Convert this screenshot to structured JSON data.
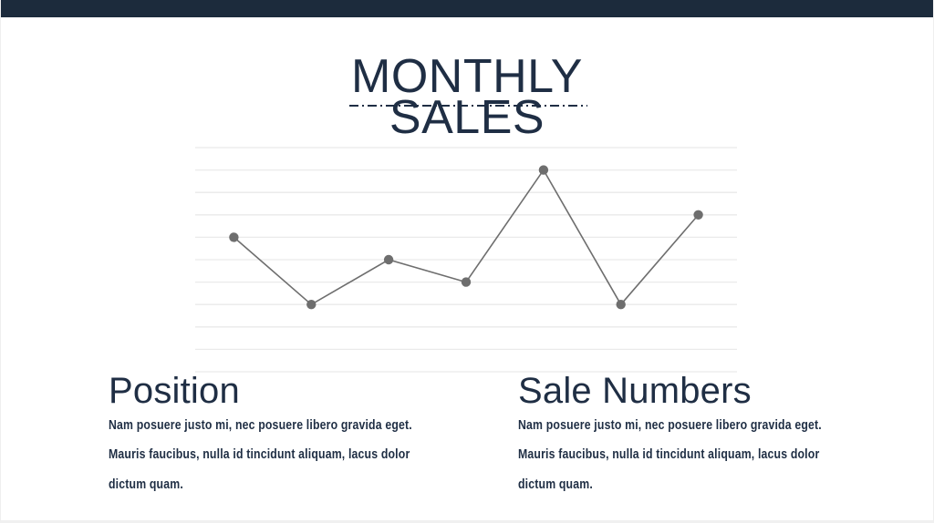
{
  "colors": {
    "ink": "#1f2e44",
    "top_bar": "#1c2b3c"
  },
  "slide": {
    "title_line1": "MONTHLY",
    "title_line2": "SALES"
  },
  "sections": [
    {
      "heading": "Position",
      "lines": [
        "Nam posuere justo mi, nec posuere libero gravida eget.",
        "Mauris faucibus, nulla id tincidunt aliquam, lacus dolor",
        "dictum quam."
      ]
    },
    {
      "heading": "Sale Numbers",
      "lines": [
        "Nam posuere justo mi, nec posuere libero gravida eget.",
        "Mauris faucibus, nulla id tincidunt aliquam, lacus dolor",
        "dictum quam."
      ]
    }
  ],
  "chart_data": {
    "type": "line",
    "title": "Monthly Sales",
    "x": [
      1,
      2,
      3,
      4,
      5,
      6,
      7
    ],
    "values": [
      6,
      3,
      5,
      4,
      9,
      3,
      7
    ],
    "xlabel": "",
    "ylabel": "",
    "ylim": [
      0,
      10
    ],
    "gridline_step": 1,
    "grid": true,
    "legend_position": "none",
    "tick_labels_visible": false,
    "line_color": "#6e6e6e",
    "point_color": "#6e6e6e",
    "gridline_color": "#eaeaea",
    "point_radius": 5.2
  }
}
